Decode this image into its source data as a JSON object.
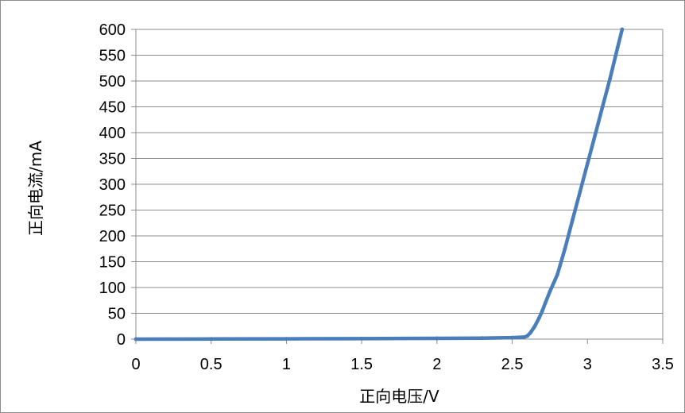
{
  "chart_data": {
    "type": "scatter",
    "title": "",
    "xlabel": "正向电压/V",
    "ylabel": "正向电流/mA",
    "xlim": [
      0,
      3.5
    ],
    "ylim": [
      0,
      600
    ],
    "x_ticks": [
      "0",
      "0.5",
      "1",
      "1.5",
      "2",
      "2.5",
      "3",
      "3.5"
    ],
    "y_ticks": [
      "0",
      "50",
      "100",
      "150",
      "200",
      "250",
      "300",
      "350",
      "400",
      "450",
      "500",
      "550",
      "600"
    ],
    "grid": "horizontal",
    "legend": "none",
    "line_color": "#4a7ebb",
    "series": [
      {
        "x": [
          0,
          0.5,
          1.0,
          1.5,
          2.0,
          2.3,
          2.5,
          2.58,
          2.6,
          2.62,
          2.65,
          2.68,
          2.7,
          2.72,
          2.75,
          2.8,
          2.85,
          2.9,
          2.95,
          3.0,
          3.05,
          3.1,
          3.15,
          3.2,
          3.23
        ],
        "y": [
          0,
          0.3,
          0.6,
          1.0,
          1.5,
          2,
          3,
          4,
          6,
          12,
          25,
          42,
          55,
          70,
          92,
          125,
          175,
          230,
          285,
          340,
          395,
          450,
          505,
          565,
          600
        ]
      }
    ]
  }
}
